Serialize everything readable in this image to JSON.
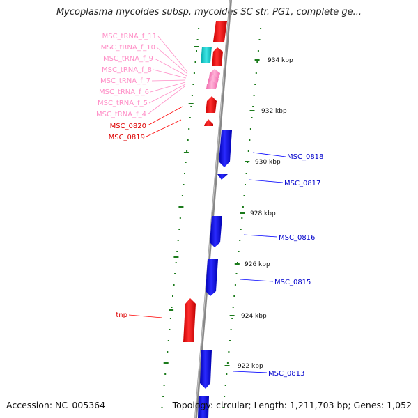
{
  "title": "Mycoplasma mycoides subsp. mycoides SC str. PG1, complete ge...",
  "accession": "Accession: NC_005364",
  "topology": "Topology: circular; Length: 1,211,703 bp; Genes: 1,052",
  "colors": {
    "forward_gene": "#ff0000",
    "reverse_gene": "#0000ff",
    "trna": "#ff8fc7",
    "rrna": "#00c8c8",
    "ticks": "#1a7a1a",
    "backbone": "#888888"
  },
  "scale_labels": [
    "934 kbp",
    "932 kbp",
    "930 kbp",
    "928 kbp",
    "926 kbp",
    "924 kbp",
    "922 kbp"
  ],
  "gene_labels_left": [
    {
      "text": "MSC_tRNA_f_11",
      "type": "trna"
    },
    {
      "text": "MSC_tRNA_f_10",
      "type": "trna"
    },
    {
      "text": "MSC_tRNA_f_9",
      "type": "trna"
    },
    {
      "text": "MSC_tRNA_f_8",
      "type": "trna"
    },
    {
      "text": "MSC_tRNA_f_7",
      "type": "trna"
    },
    {
      "text": "MSC_tRNA_f_6",
      "type": "trna"
    },
    {
      "text": "MSC_tRNA_f_5",
      "type": "trna"
    },
    {
      "text": "MSC_tRNA_f_4",
      "type": "trna"
    },
    {
      "text": "MSC_0820",
      "type": "forward"
    },
    {
      "text": "MSC_0819",
      "type": "forward"
    },
    {
      "text": "tnp",
      "type": "forward"
    }
  ],
  "gene_labels_right": [
    {
      "text": "MSC_0818",
      "type": "reverse"
    },
    {
      "text": "MSC_0817",
      "type": "reverse"
    },
    {
      "text": "MSC_0816",
      "type": "reverse"
    },
    {
      "text": "MSC_0815",
      "type": "reverse"
    },
    {
      "text": "MSC_0813",
      "type": "reverse"
    }
  ]
}
